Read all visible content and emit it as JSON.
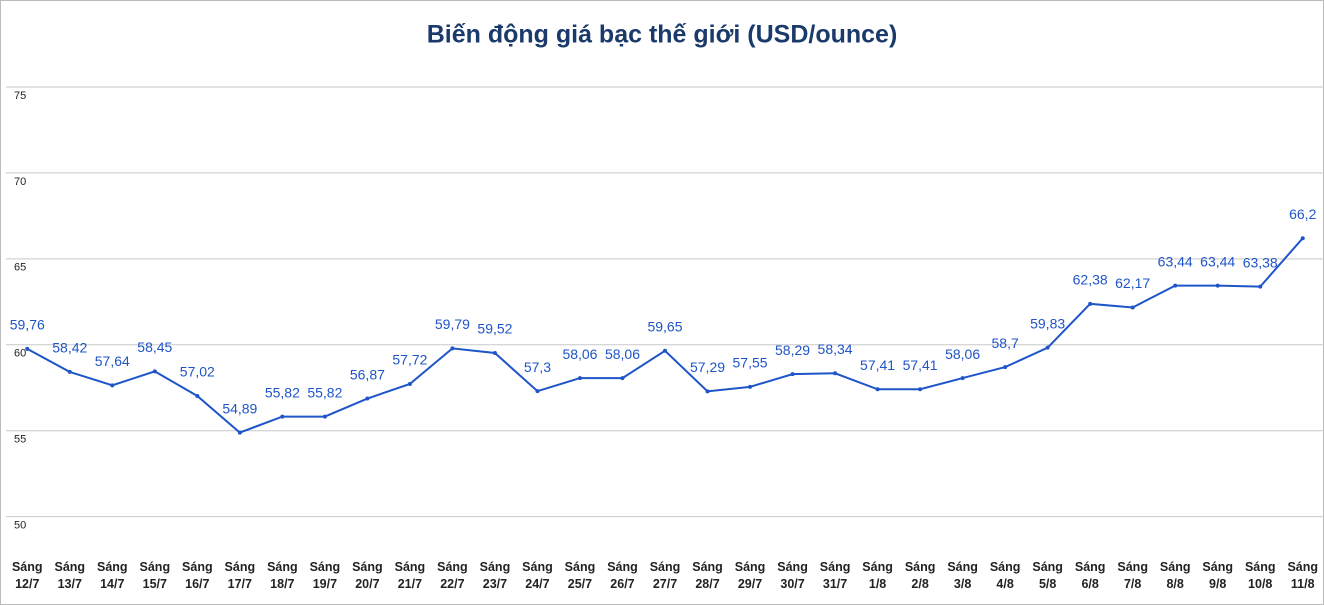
{
  "chart_data": {
    "type": "line",
    "title": "Biến động giá bạc thế giới (USD/ounce)",
    "categories": [
      "Sáng 12/7",
      "Sáng 13/7",
      "Sáng 14/7",
      "Sáng 15/7",
      "Sáng 16/7",
      "Sáng 17/7",
      "Sáng 18/7",
      "Sáng 19/7",
      "Sáng 20/7",
      "Sáng 21/7",
      "Sáng 22/7",
      "Sáng 23/7",
      "Sáng 24/7",
      "Sáng 25/7",
      "Sáng 26/7",
      "Sáng 27/7",
      "Sáng 28/7",
      "Sáng 29/7",
      "Sáng 30/7",
      "Sáng 31/7",
      "Sáng 1/8",
      "Sáng 2/8",
      "Sáng 3/8",
      "Sáng 4/8",
      "Sáng 5/8",
      "Sáng 6/8",
      "Sáng 7/8",
      "Sáng 8/8",
      "Sáng 9/8",
      "Sáng 10/8",
      "Sáng 11/8"
    ],
    "values": [
      59.76,
      58.42,
      57.64,
      58.45,
      57.02,
      54.89,
      55.82,
      55.82,
      56.87,
      57.72,
      59.79,
      59.52,
      57.3,
      58.06,
      58.06,
      59.65,
      57.29,
      57.55,
      58.29,
      58.34,
      57.41,
      57.41,
      58.06,
      58.7,
      59.83,
      62.38,
      62.17,
      63.44,
      63.44,
      63.38,
      66.2
    ],
    "value_labels": [
      "59,76",
      "58,42",
      "57,64",
      "58,45",
      "57,02",
      "54,89",
      "55,82",
      "55,82",
      "56,87",
      "57,72",
      "59,79",
      "59,52",
      "57,3",
      "58,06",
      "58,06",
      "59,65",
      "57,29",
      "57,55",
      "58,29",
      "58,34",
      "57,41",
      "57,41",
      "58,06",
      "58,7",
      "59,83",
      "62,38",
      "62,17",
      "63,44",
      "63,44",
      "63,38",
      "66,2"
    ],
    "color": "#1f55c8",
    "ylim": [
      48,
      80
    ],
    "yticks": [
      50,
      55,
      60,
      65,
      70,
      75
    ],
    "grid": true
  }
}
